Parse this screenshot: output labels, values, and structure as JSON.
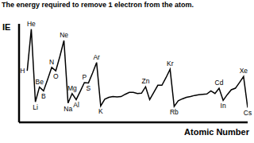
{
  "chart_data": {
    "type": "line",
    "title": "The energy required to remove 1 electron from the atom.",
    "x_label": "Atomic Number",
    "y_label": "IE",
    "x": [
      1,
      2,
      3,
      4,
      5,
      6,
      7,
      8,
      9,
      10,
      11,
      12,
      13,
      14,
      15,
      16,
      17,
      18,
      19,
      20,
      21,
      22,
      23,
      24,
      25,
      26,
      27,
      28,
      29,
      30,
      31,
      32,
      33,
      34,
      35,
      36,
      37,
      38,
      39,
      40,
      41,
      42,
      43,
      44,
      45,
      46,
      47,
      48,
      49,
      50,
      51,
      52,
      53,
      54,
      55
    ],
    "values": [
      13.6,
      24.6,
      5.4,
      9.3,
      8.3,
      11.3,
      14.5,
      13.6,
      17.4,
      21.6,
      5.1,
      7.6,
      6.0,
      8.2,
      10.5,
      10.4,
      13.0,
      15.8,
      4.3,
      6.1,
      6.6,
      6.8,
      6.7,
      6.8,
      7.4,
      7.9,
      7.9,
      7.6,
      7.7,
      9.4,
      6.0,
      7.9,
      9.8,
      9.8,
      11.8,
      14.0,
      4.2,
      5.7,
      6.2,
      6.6,
      6.8,
      7.1,
      7.3,
      7.4,
      7.5,
      8.3,
      7.6,
      9.0,
      5.8,
      7.3,
      8.6,
      9.0,
      10.5,
      12.1,
      3.9
    ],
    "color": "#000000",
    "xlim": [
      -1,
      55
    ],
    "ylim": [
      0,
      26
    ],
    "grid": false,
    "tick_labels": false,
    "annotations": [
      {
        "x": 1,
        "text": "H"
      },
      {
        "x": 2,
        "text": "He"
      },
      {
        "x": 3,
        "text": "Li"
      },
      {
        "x": 4,
        "text": "Be"
      },
      {
        "x": 5,
        "text": "B"
      },
      {
        "x": 7,
        "text": "N"
      },
      {
        "x": 8,
        "text": "O"
      },
      {
        "x": 10,
        "text": "Ne"
      },
      {
        "x": 11,
        "text": "Na"
      },
      {
        "x": 12,
        "text": "Mg"
      },
      {
        "x": 13,
        "text": "Al"
      },
      {
        "x": 15,
        "text": "P"
      },
      {
        "x": 16,
        "text": "S"
      },
      {
        "x": 18,
        "text": "Ar"
      },
      {
        "x": 19,
        "text": "K"
      },
      {
        "x": 30,
        "text": "Zn"
      },
      {
        "x": 36,
        "text": "Kr"
      },
      {
        "x": 37,
        "text": "Rb"
      },
      {
        "x": 48,
        "text": "Cd"
      },
      {
        "x": 49,
        "text": "In"
      },
      {
        "x": 54,
        "text": "Xe"
      },
      {
        "x": 55,
        "text": "Cs"
      }
    ]
  }
}
